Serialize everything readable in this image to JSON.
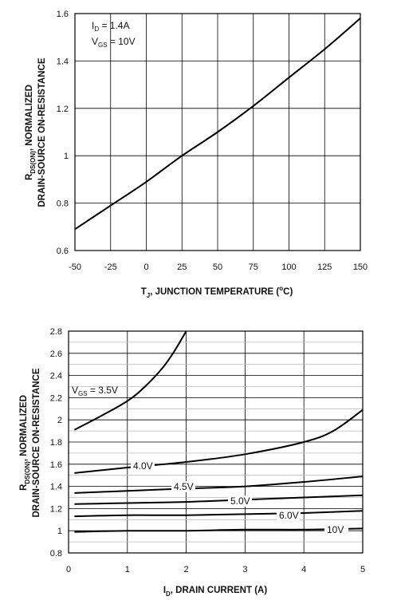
{
  "chart_data": [
    {
      "type": "line",
      "xlabel_parts": {
        "pre": "T",
        "sub": "J",
        "post": ", JUNCTION TEMPERATURE (",
        "sup": "o",
        "end": "C)"
      },
      "ylabel_line1": {
        "pre": "R",
        "sub": "DS(ON)",
        "post": ", NORMALIZED"
      },
      "ylabel_line2": "DRAIN-SOURCE ON-RESISTANCE",
      "annotation": {
        "id_pre": "I",
        "id_sub": "D",
        "id_post": " = 1.4A",
        "vgs_pre": "V",
        "vgs_sub": "GS",
        "vgs_post": " = 10V"
      },
      "xlim": [
        -50,
        150
      ],
      "ylim": [
        0.6,
        1.6
      ],
      "x_ticks": [
        -50,
        -25,
        0,
        25,
        50,
        75,
        100,
        125,
        150
      ],
      "y_ticks": [
        0.6,
        0.8,
        1,
        1.2,
        1.4,
        1.6
      ],
      "x_tick_labels": [
        "-50",
        "-25",
        "0",
        "25",
        "50",
        "75",
        "100",
        "125",
        "150"
      ],
      "y_tick_labels": [
        "0.6",
        "0.8",
        "1",
        "1.2",
        "1.4",
        "1.6"
      ],
      "grid": true,
      "series": [
        {
          "x": [
            -50,
            -25,
            0,
            25,
            50,
            75,
            100,
            125,
            150
          ],
          "y": [
            0.69,
            0.79,
            0.89,
            1.0,
            1.1,
            1.21,
            1.33,
            1.45,
            1.58
          ]
        }
      ]
    },
    {
      "type": "line",
      "xlabel_parts": {
        "pre": "I",
        "sub": "D",
        "post": ", DRAIN CURRENT (A)"
      },
      "ylabel_line1": {
        "pre": "R",
        "sub": "DS(ON)",
        "post": ", NORMALIZED"
      },
      "ylabel_line2": "DRAIN-SOURCE ON-RESISTANCE",
      "xlim": [
        0,
        5
      ],
      "ylim": [
        0.8,
        2.8
      ],
      "x_ticks": [
        0,
        1,
        2,
        3,
        4,
        5
      ],
      "y_ticks": [
        0.8,
        1,
        1.2,
        1.4,
        1.6,
        1.8,
        2,
        2.2,
        2.4,
        2.6,
        2.8
      ],
      "x_tick_labels": [
        "0",
        "1",
        "2",
        "3",
        "4",
        "5"
      ],
      "y_tick_labels": [
        "0.8",
        "1",
        "1.2",
        "1.4",
        "1.6",
        "1.8",
        "2",
        "2.2",
        "2.4",
        "2.6",
        "2.8"
      ],
      "grid": true,
      "series": [
        {
          "name": "3.5V",
          "label_pre": "V",
          "label_sub": "GS",
          "label_post": " = 3.5V",
          "x": [
            0.1,
            0.5,
            1.0,
            1.3,
            1.6,
            1.8,
            2.0
          ],
          "y": [
            1.91,
            2.02,
            2.17,
            2.3,
            2.47,
            2.62,
            2.8
          ]
        },
        {
          "name": "4.0V",
          "x": [
            0.1,
            1,
            2,
            3,
            4,
            4.5,
            5
          ],
          "y": [
            1.52,
            1.57,
            1.62,
            1.69,
            1.8,
            1.9,
            2.09
          ]
        },
        {
          "name": "4.5V",
          "x": [
            0.1,
            1,
            2,
            3,
            4,
            5
          ],
          "y": [
            1.34,
            1.36,
            1.38,
            1.4,
            1.44,
            1.49
          ]
        },
        {
          "name": "5.0V",
          "x": [
            0.1,
            1,
            2,
            3,
            4,
            5
          ],
          "y": [
            1.24,
            1.25,
            1.26,
            1.28,
            1.3,
            1.32
          ]
        },
        {
          "name": "6.0V",
          "x": [
            0.1,
            1,
            2,
            3,
            4,
            5
          ],
          "y": [
            1.13,
            1.14,
            1.14,
            1.15,
            1.16,
            1.18
          ]
        },
        {
          "name": "10V",
          "x": [
            0.1,
            1,
            2,
            3,
            4,
            5
          ],
          "y": [
            0.99,
            1.0,
            1.0,
            1.01,
            1.01,
            1.02
          ]
        }
      ]
    }
  ]
}
